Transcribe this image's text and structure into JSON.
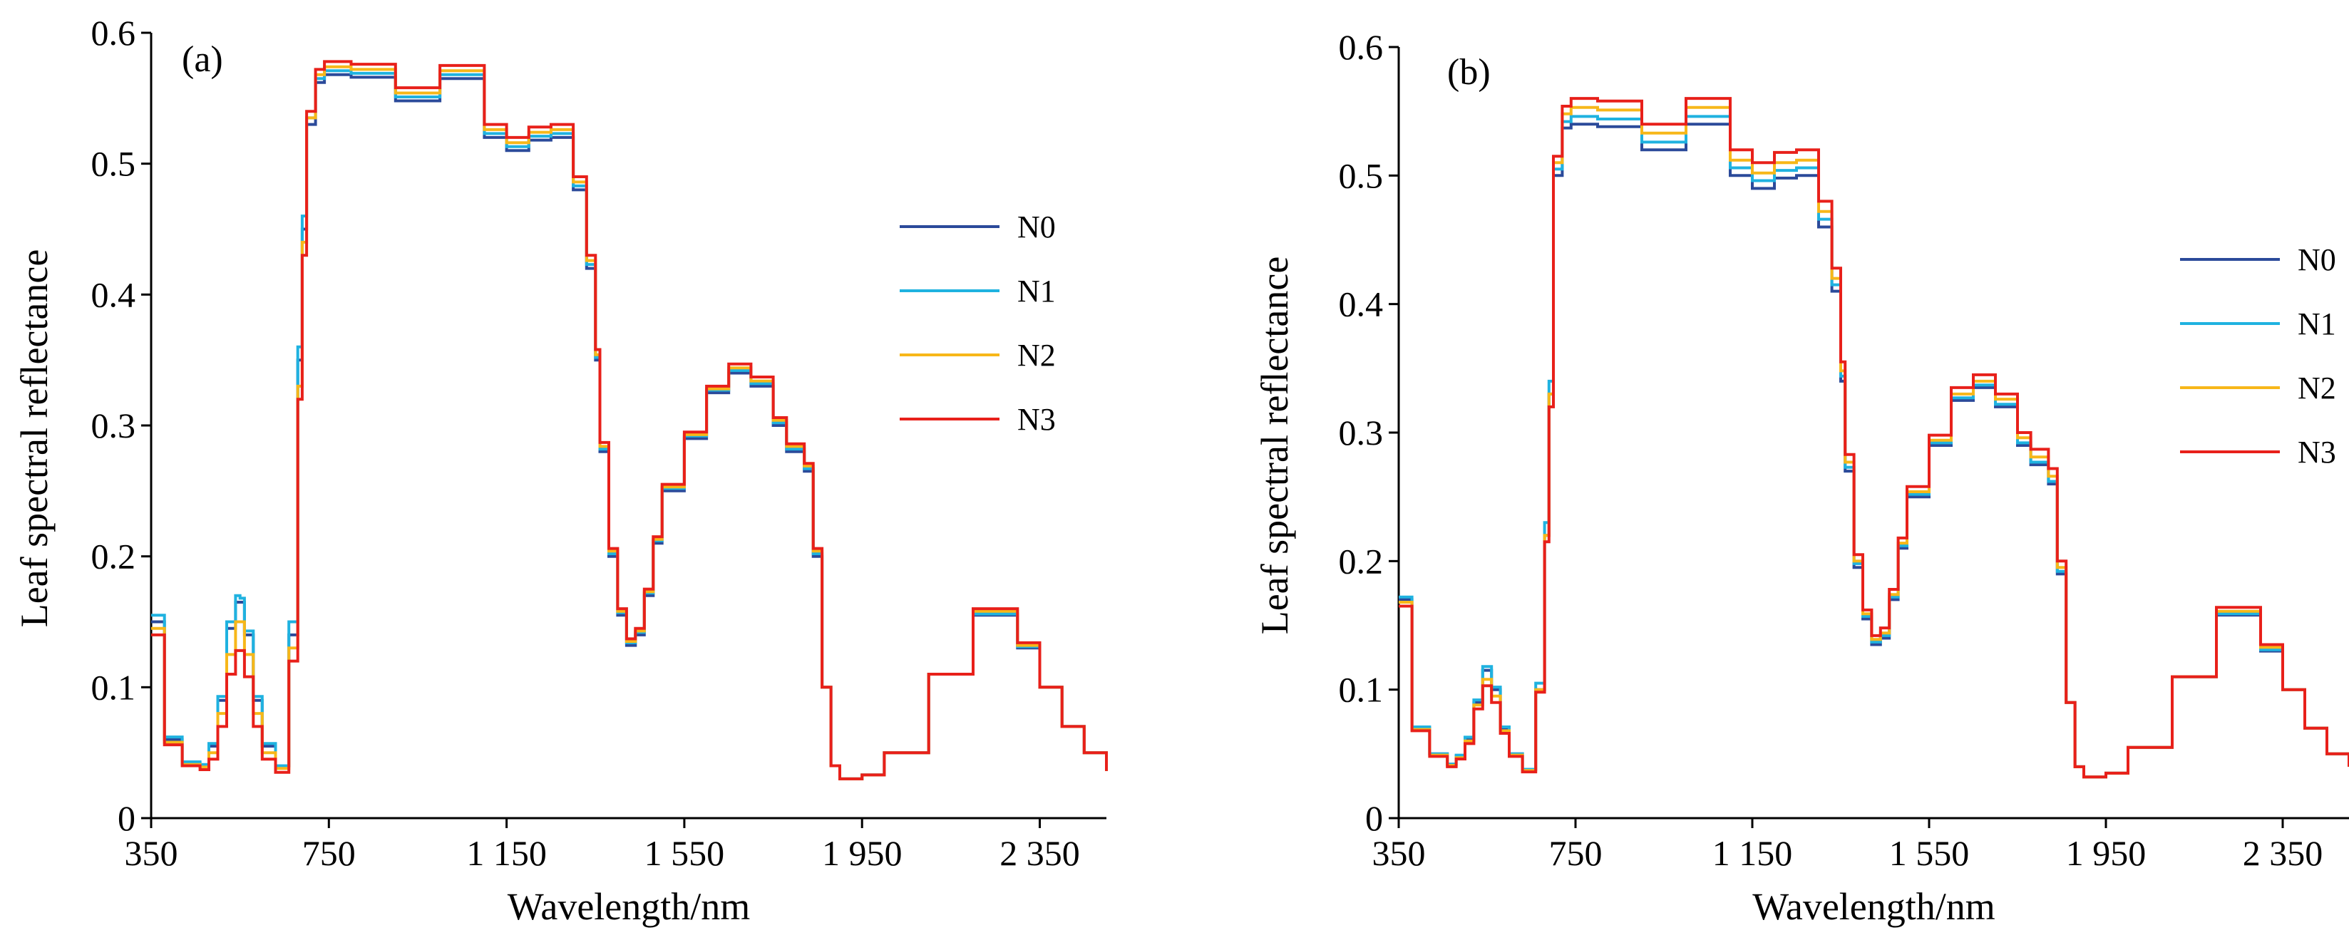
{
  "chart_data": [
    {
      "type": "line",
      "panel_label": "(a)",
      "xlabel": "Wavelength/nm",
      "ylabel": "Leaf spectral reflectance",
      "xlim": [
        350,
        2500
      ],
      "ylim": [
        0,
        0.6
      ],
      "xticks": [
        350,
        750,
        1150,
        1550,
        1950,
        2350
      ],
      "xtick_labels": [
        "350",
        "750",
        "1 150",
        "1 550",
        "1 950",
        "2 350"
      ],
      "yticks": [
        0,
        0.1,
        0.2,
        0.3,
        0.4,
        0.5,
        0.6
      ],
      "ytick_labels": [
        "0",
        "0.1",
        "0.2",
        "0.3",
        "0.4",
        "0.5",
        "0.6"
      ],
      "legend_position": "right",
      "x": [
        350,
        380,
        420,
        460,
        480,
        500,
        520,
        540,
        550,
        560,
        580,
        600,
        630,
        660,
        680,
        690,
        700,
        720,
        740,
        760,
        800,
        900,
        1000,
        1050,
        1100,
        1150,
        1200,
        1250,
        1300,
        1330,
        1350,
        1360,
        1380,
        1400,
        1420,
        1440,
        1460,
        1480,
        1500,
        1550,
        1600,
        1650,
        1700,
        1750,
        1780,
        1800,
        1820,
        1840,
        1860,
        1880,
        1900,
        1950,
        2000,
        2100,
        2200,
        2250,
        2300,
        2350,
        2400,
        2450,
        2500
      ],
      "series": [
        {
          "name": "N0",
          "color": "#2b4a9a",
          "values": [
            0.15,
            0.06,
            0.042,
            0.04,
            0.055,
            0.09,
            0.145,
            0.165,
            0.165,
            0.14,
            0.09,
            0.055,
            0.04,
            0.14,
            0.35,
            0.45,
            0.53,
            0.562,
            0.568,
            0.568,
            0.566,
            0.548,
            0.565,
            0.565,
            0.52,
            0.51,
            0.518,
            0.52,
            0.48,
            0.42,
            0.35,
            0.28,
            0.2,
            0.155,
            0.132,
            0.14,
            0.17,
            0.21,
            0.25,
            0.29,
            0.325,
            0.34,
            0.33,
            0.3,
            0.28,
            0.28,
            0.265,
            0.2,
            0.1,
            0.04,
            0.03,
            0.033,
            0.05,
            0.11,
            0.155,
            0.155,
            0.13,
            0.1,
            0.07,
            0.05,
            0.036
          ]
        },
        {
          "name": "N1",
          "color": "#1fb2e0",
          "values": [
            0.155,
            0.062,
            0.043,
            0.041,
            0.057,
            0.093,
            0.15,
            0.17,
            0.168,
            0.143,
            0.093,
            0.057,
            0.04,
            0.15,
            0.36,
            0.46,
            0.535,
            0.565,
            0.571,
            0.571,
            0.569,
            0.551,
            0.568,
            0.568,
            0.523,
            0.513,
            0.521,
            0.523,
            0.483,
            0.423,
            0.352,
            0.282,
            0.202,
            0.157,
            0.134,
            0.142,
            0.172,
            0.212,
            0.252,
            0.292,
            0.327,
            0.342,
            0.332,
            0.302,
            0.282,
            0.282,
            0.267,
            0.202,
            0.1,
            0.04,
            0.03,
            0.033,
            0.05,
            0.11,
            0.156,
            0.156,
            0.131,
            0.1,
            0.07,
            0.05,
            0.036
          ]
        },
        {
          "name": "N2",
          "color": "#f7b719",
          "values": [
            0.145,
            0.058,
            0.041,
            0.039,
            0.05,
            0.08,
            0.125,
            0.15,
            0.15,
            0.125,
            0.08,
            0.05,
            0.038,
            0.13,
            0.33,
            0.44,
            0.535,
            0.568,
            0.574,
            0.574,
            0.572,
            0.554,
            0.571,
            0.571,
            0.526,
            0.516,
            0.524,
            0.526,
            0.486,
            0.426,
            0.354,
            0.284,
            0.204,
            0.158,
            0.135,
            0.143,
            0.173,
            0.213,
            0.253,
            0.293,
            0.328,
            0.344,
            0.334,
            0.304,
            0.284,
            0.284,
            0.269,
            0.204,
            0.1,
            0.04,
            0.03,
            0.033,
            0.05,
            0.11,
            0.158,
            0.158,
            0.132,
            0.1,
            0.07,
            0.05,
            0.036
          ]
        },
        {
          "name": "N3",
          "color": "#e8201a",
          "values": [
            0.14,
            0.056,
            0.04,
            0.037,
            0.045,
            0.07,
            0.11,
            0.128,
            0.128,
            0.108,
            0.07,
            0.045,
            0.035,
            0.12,
            0.32,
            0.43,
            0.54,
            0.572,
            0.578,
            0.578,
            0.576,
            0.558,
            0.575,
            0.575,
            0.53,
            0.52,
            0.528,
            0.53,
            0.49,
            0.43,
            0.358,
            0.287,
            0.206,
            0.16,
            0.137,
            0.145,
            0.175,
            0.215,
            0.255,
            0.295,
            0.33,
            0.347,
            0.337,
            0.306,
            0.286,
            0.286,
            0.271,
            0.206,
            0.1,
            0.04,
            0.03,
            0.033,
            0.05,
            0.11,
            0.16,
            0.16,
            0.134,
            0.1,
            0.07,
            0.05,
            0.036
          ]
        }
      ]
    },
    {
      "type": "line",
      "panel_label": "(b)",
      "xlabel": "Wavelength/nm",
      "ylabel": "Leaf spectral reflectance",
      "xlim": [
        350,
        2500
      ],
      "ylim": [
        0,
        0.6
      ],
      "xticks": [
        350,
        750,
        1150,
        1550,
        1950,
        2350
      ],
      "xtick_labels": [
        "350",
        "750",
        "1 150",
        "1 550",
        "1 950",
        "2 350"
      ],
      "yticks": [
        0,
        0.1,
        0.2,
        0.3,
        0.4,
        0.5,
        0.6
      ],
      "ytick_labels": [
        "0",
        "0.1",
        "0.2",
        "0.3",
        "0.4",
        "0.5",
        "0.6"
      ],
      "legend_position": "right",
      "x": [
        350,
        380,
        420,
        460,
        480,
        500,
        520,
        540,
        550,
        560,
        580,
        600,
        630,
        660,
        680,
        690,
        700,
        720,
        740,
        760,
        800,
        900,
        1000,
        1050,
        1100,
        1150,
        1200,
        1250,
        1300,
        1330,
        1350,
        1360,
        1380,
        1400,
        1420,
        1440,
        1460,
        1480,
        1500,
        1550,
        1600,
        1650,
        1700,
        1750,
        1780,
        1800,
        1820,
        1840,
        1860,
        1880,
        1900,
        1950,
        2000,
        2100,
        2200,
        2250,
        2300,
        2350,
        2400,
        2450,
        2500
      ],
      "series": [
        {
          "name": "N0",
          "color": "#2b4a9a",
          "values": [
            0.17,
            0.07,
            0.05,
            0.042,
            0.048,
            0.062,
            0.09,
            0.115,
            0.115,
            0.1,
            0.07,
            0.05,
            0.038,
            0.1,
            0.22,
            0.33,
            0.5,
            0.537,
            0.54,
            0.54,
            0.538,
            0.52,
            0.54,
            0.54,
            0.5,
            0.49,
            0.498,
            0.5,
            0.46,
            0.41,
            0.34,
            0.27,
            0.195,
            0.155,
            0.135,
            0.14,
            0.17,
            0.21,
            0.25,
            0.29,
            0.325,
            0.335,
            0.32,
            0.29,
            0.275,
            0.275,
            0.26,
            0.19,
            0.09,
            0.04,
            0.032,
            0.035,
            0.055,
            0.11,
            0.158,
            0.158,
            0.13,
            0.1,
            0.07,
            0.05,
            0.04
          ]
        },
        {
          "name": "N1",
          "color": "#1fb2e0",
          "values": [
            0.172,
            0.071,
            0.05,
            0.042,
            0.049,
            0.063,
            0.092,
            0.118,
            0.118,
            0.102,
            0.071,
            0.05,
            0.038,
            0.105,
            0.23,
            0.34,
            0.505,
            0.542,
            0.546,
            0.546,
            0.544,
            0.526,
            0.546,
            0.546,
            0.506,
            0.496,
            0.504,
            0.506,
            0.466,
            0.415,
            0.344,
            0.273,
            0.198,
            0.157,
            0.137,
            0.142,
            0.172,
            0.212,
            0.252,
            0.292,
            0.327,
            0.337,
            0.322,
            0.292,
            0.277,
            0.277,
            0.262,
            0.192,
            0.09,
            0.04,
            0.032,
            0.035,
            0.055,
            0.11,
            0.159,
            0.159,
            0.131,
            0.1,
            0.07,
            0.05,
            0.04
          ]
        },
        {
          "name": "N2",
          "color": "#f7b719",
          "values": [
            0.168,
            0.069,
            0.049,
            0.041,
            0.047,
            0.06,
            0.088,
            0.108,
            0.108,
            0.095,
            0.068,
            0.049,
            0.037,
            0.1,
            0.22,
            0.33,
            0.51,
            0.548,
            0.553,
            0.553,
            0.551,
            0.533,
            0.553,
            0.553,
            0.512,
            0.502,
            0.51,
            0.512,
            0.472,
            0.42,
            0.348,
            0.277,
            0.2,
            0.159,
            0.139,
            0.144,
            0.174,
            0.214,
            0.254,
            0.294,
            0.33,
            0.34,
            0.326,
            0.296,
            0.281,
            0.281,
            0.266,
            0.195,
            0.09,
            0.04,
            0.032,
            0.035,
            0.055,
            0.11,
            0.161,
            0.161,
            0.133,
            0.1,
            0.07,
            0.05,
            0.04
          ]
        },
        {
          "name": "N3",
          "color": "#e8201a",
          "values": [
            0.165,
            0.068,
            0.048,
            0.04,
            0.046,
            0.058,
            0.085,
            0.103,
            0.103,
            0.09,
            0.066,
            0.048,
            0.036,
            0.098,
            0.215,
            0.32,
            0.515,
            0.554,
            0.56,
            0.56,
            0.558,
            0.54,
            0.56,
            0.56,
            0.52,
            0.51,
            0.518,
            0.52,
            0.48,
            0.428,
            0.355,
            0.283,
            0.205,
            0.162,
            0.142,
            0.148,
            0.178,
            0.218,
            0.258,
            0.298,
            0.335,
            0.345,
            0.33,
            0.3,
            0.287,
            0.287,
            0.272,
            0.2,
            0.09,
            0.04,
            0.032,
            0.035,
            0.055,
            0.11,
            0.164,
            0.164,
            0.135,
            0.1,
            0.07,
            0.05,
            0.04
          ]
        }
      ]
    }
  ]
}
